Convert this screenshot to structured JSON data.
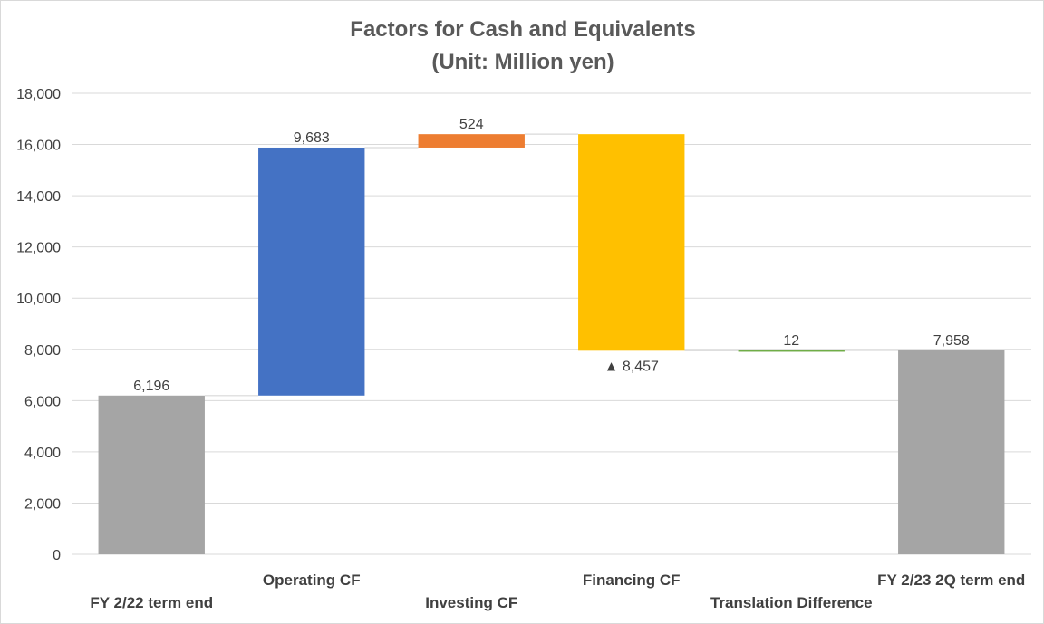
{
  "chart_data": {
    "type": "bar",
    "subtype": "waterfall",
    "title_lines": [
      "Factors for Cash and Equivalents",
      "(Unit: Million yen)"
    ],
    "categories": [
      "FY 2/22 term end",
      "Operating CF",
      "Investing CF",
      "Financing CF",
      "Translation Difference",
      "FY 2/23 2Q term end"
    ],
    "values": [
      6196,
      9683,
      524,
      -8457,
      12,
      7958
    ],
    "kinds": [
      "total",
      "delta",
      "delta",
      "delta",
      "delta",
      "total"
    ],
    "data_labels": [
      "6,196",
      "9,683",
      "524",
      "▲ 8,457",
      "12",
      "7,958"
    ],
    "colors": [
      "#a5a5a5",
      "#4472c4",
      "#ed7d31",
      "#ffc000",
      "#70ad47",
      "#a5a5a5"
    ],
    "ylim": [
      0,
      18000
    ],
    "yticks": [
      0,
      2000,
      4000,
      6000,
      8000,
      10000,
      12000,
      14000,
      16000,
      18000
    ],
    "ytick_labels": [
      "0",
      "2,000",
      "4,000",
      "6,000",
      "8,000",
      "10,000",
      "12,000",
      "14,000",
      "16,000",
      "18,000"
    ],
    "grid": true,
    "legend": "none",
    "connector_color": "#d9d9d9"
  }
}
